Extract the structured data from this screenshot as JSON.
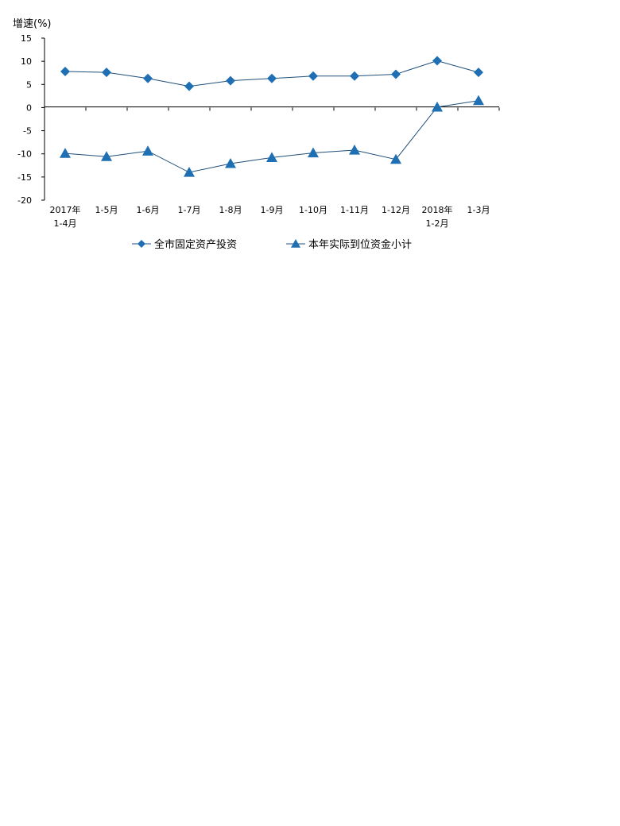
{
  "chart_data": {
    "type": "line",
    "ylabel": "增速(%)",
    "ylim": [
      -20,
      15
    ],
    "yticks": [
      15,
      10,
      5,
      0,
      -5,
      -10,
      -15,
      -20
    ],
    "categories": [
      [
        "2017年",
        "1-4月"
      ],
      [
        "1-5月"
      ],
      [
        "1-6月"
      ],
      [
        "1-7月"
      ],
      [
        "1-8月"
      ],
      [
        "1-9月"
      ],
      [
        "1-10月"
      ],
      [
        "1-11月"
      ],
      [
        "1-12月"
      ],
      [
        "2018年",
        "1-2月"
      ],
      [
        "1-3月"
      ]
    ],
    "series": [
      {
        "name": "全市固定资产投资",
        "marker": "diamond",
        "color": "#1F6FB4",
        "values": [
          7.8,
          7.6,
          6.3,
          4.6,
          5.8,
          6.3,
          6.8,
          6.8,
          7.2,
          10.1,
          7.6
        ]
      },
      {
        "name": "本年实际到位资金小计",
        "marker": "triangle",
        "color": "#1F6FB4",
        "values": [
          -9.9,
          -10.6,
          -9.4,
          -14.0,
          -12.1,
          -10.8,
          -9.8,
          -9.2,
          -11.2,
          0.1,
          1.5
        ]
      }
    ],
    "legend_position": "bottom",
    "grid": false
  }
}
